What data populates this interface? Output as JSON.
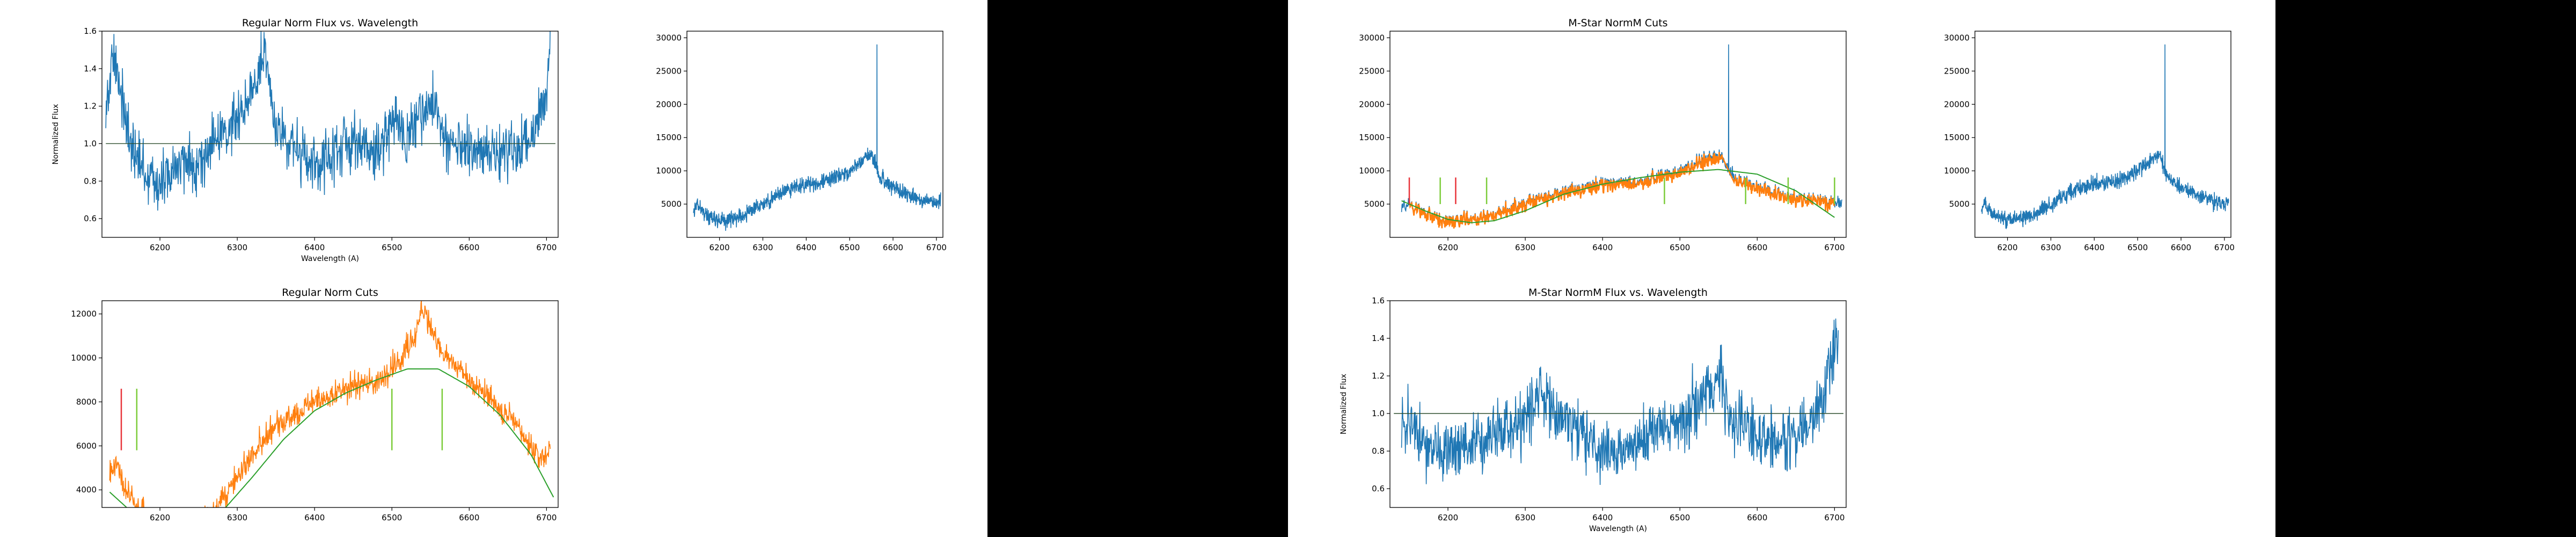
{
  "figure_1": {
    "chart_data": [
      {
        "id": "f1-flux",
        "type": "line",
        "title": "Regular Norm Flux vs. Wavelength",
        "xlabel": "Wavelength (A)",
        "ylabel": "Normalized Flux",
        "xlim": [
          6125,
          6715
        ],
        "ylim": [
          0.5,
          1.6
        ],
        "xticks": [
          6200,
          6300,
          6400,
          6500,
          6600,
          6700
        ],
        "yticks": [
          0.6,
          0.8,
          1.0,
          1.2,
          1.4,
          1.6
        ],
        "ytick_labels": [
          "0.6",
          "0.8",
          "1.0",
          "1.2",
          "1.4",
          "1.6"
        ],
        "hline": 1.0,
        "spectrum_anchors": {
          "x": [
            6130,
            6140,
            6150,
            6160,
            6180,
            6200,
            6225,
            6250,
            6280,
            6300,
            6320,
            6335,
            6350,
            6380,
            6400,
            6420,
            6450,
            6480,
            6500,
            6520,
            6540,
            6555,
            6570,
            6600,
            6630,
            6660,
            6680,
            6700,
            6705
          ],
          "y": [
            1.2,
            1.45,
            1.3,
            1.0,
            0.85,
            0.78,
            0.88,
            0.9,
            1.05,
            1.15,
            1.3,
            1.45,
            1.1,
            0.95,
            0.85,
            0.95,
            1.0,
            0.95,
            1.1,
            1.05,
            1.15,
            1.25,
            1.0,
            0.95,
            0.95,
            0.95,
            1.05,
            1.25,
            1.6
          ]
        },
        "noise": 0.12,
        "series": [
          {
            "values": "spectrum",
            "color": "#1f77b4"
          },
          {
            "values": "hline",
            "color": "#2f4f2f"
          }
        ]
      },
      {
        "id": "f1-raw",
        "type": "line",
        "title": "",
        "xlabel": "",
        "ylabel": "",
        "xlim": [
          6125,
          6715
        ],
        "ylim": [
          0,
          31000
        ],
        "xticks": [
          6200,
          6300,
          6400,
          6500,
          6600,
          6700
        ],
        "yticks": [
          5000,
          10000,
          15000,
          20000,
          25000,
          30000
        ],
        "ytick_labels": [
          "5000",
          "10000",
          "15000",
          "20000",
          "25000",
          "30000"
        ],
        "spectrum_anchors": {
          "x": [
            6140,
            6150,
            6165,
            6200,
            6230,
            6260,
            6300,
            6350,
            6400,
            6450,
            6500,
            6530,
            6550,
            6570,
            6600,
            6650,
            6700,
            6710
          ],
          "y": [
            4500,
            5000,
            3500,
            2500,
            2800,
            3500,
            5000,
            7000,
            8000,
            8500,
            10000,
            11500,
            12500,
            9000,
            7500,
            6000,
            5000,
            5500
          ]
        },
        "spike": {
          "x": 6563,
          "y": 29000
        },
        "noise": 900,
        "series": [
          {
            "values": "spectrum",
            "color": "#1f77b4"
          }
        ]
      },
      {
        "id": "f1-cuts",
        "type": "line",
        "title": "Regular Norm Cuts",
        "xlabel": "",
        "ylabel": "",
        "xlim": [
          6125,
          6715
        ],
        "ylim": [
          3200,
          12600
        ],
        "xticks": [
          6200,
          6300,
          6400,
          6500,
          6600,
          6700
        ],
        "yticks": [
          4000,
          6000,
          8000,
          10000,
          12000
        ],
        "ytick_labels": [
          "4000",
          "6000",
          "8000",
          "10000",
          "12000"
        ],
        "spectrum_anchors": {
          "x": [
            6135,
            6145,
            6155,
            6170,
            6200,
            6230,
            6260,
            6290,
            6320,
            6350,
            6380,
            6400,
            6430,
            6460,
            6490,
            6510,
            6530,
            6540,
            6555,
            6570,
            6600,
            6630,
            6660,
            6690,
            6705
          ],
          "y": [
            4800,
            5200,
            4000,
            3200,
            2400,
            2200,
            2700,
            4000,
            5800,
            7000,
            7500,
            8000,
            8400,
            8800,
            9200,
            10000,
            11000,
            12200,
            11000,
            10000,
            9000,
            8000,
            7000,
            5500,
            5800
          ]
        },
        "fit_anchors": {
          "x": [
            6135,
            6160,
            6200,
            6240,
            6280,
            6320,
            6360,
            6400,
            6440,
            6480,
            6520,
            6560,
            6600,
            6640,
            6680,
            6710
          ],
          "y": [
            3900,
            3100,
            2300,
            2100,
            3000,
            4600,
            6300,
            7600,
            8400,
            9000,
            9500,
            9500,
            8700,
            7400,
            5600,
            3600
          ]
        },
        "noise": 450,
        "markers": [
          {
            "x": 6150,
            "y0": 5800,
            "y1": 8600,
            "color": "#e8333a"
          },
          {
            "x": 6170,
            "y0": 5800,
            "y1": 8600,
            "color": "#7ccc3a"
          },
          {
            "x": 6500,
            "y0": 5800,
            "y1": 8600,
            "color": "#7ccc3a"
          },
          {
            "x": 6565,
            "y0": 5800,
            "y1": 8600,
            "color": "#7ccc3a"
          }
        ],
        "series": [
          {
            "values": "spectrum",
            "color": "#ff7f0e"
          },
          {
            "values": "fit",
            "color": "#2ca02c"
          }
        ]
      }
    ]
  },
  "figure_2": {
    "chart_data": [
      {
        "id": "f2-cuts",
        "type": "line",
        "title": "M-Star NormM Cuts",
        "xlabel": "",
        "ylabel": "",
        "xlim": [
          6125,
          6715
        ],
        "ylim": [
          0,
          31000
        ],
        "xticks": [
          6200,
          6300,
          6400,
          6500,
          6600,
          6700
        ],
        "yticks": [
          5000,
          10000,
          15000,
          20000,
          25000,
          30000
        ],
        "ytick_labels": [
          "5000",
          "10000",
          "15000",
          "20000",
          "25000",
          "30000"
        ],
        "spectrum_anchors": {
          "x": [
            6140,
            6150,
            6170,
            6200,
            6230,
            6260,
            6300,
            6350,
            6400,
            6450,
            6500,
            6530,
            6550,
            6570,
            6600,
            6650,
            6700,
            6710
          ],
          "y": [
            4500,
            5000,
            3500,
            2500,
            2800,
            3500,
            5000,
            7000,
            8000,
            8500,
            10000,
            11500,
            12500,
            9000,
            7500,
            6000,
            5000,
            5500
          ]
        },
        "spike": {
          "x": 6563,
          "y": 29000
        },
        "fit_anchors": {
          "x": [
            6140,
            6170,
            6200,
            6230,
            6260,
            6300,
            6350,
            6400,
            6450,
            6500,
            6550,
            6600,
            6650,
            6700
          ],
          "y": [
            5500,
            4000,
            2700,
            2200,
            2500,
            4000,
            6500,
            8000,
            9000,
            9800,
            10200,
            9500,
            7000,
            3000
          ]
        },
        "noise": 900,
        "markers": [
          {
            "x": 6150,
            "y0": 5000,
            "y1": 9000,
            "color": "#e8333a"
          },
          {
            "x": 6190,
            "y0": 5000,
            "y1": 9000,
            "color": "#7ccc3a"
          },
          {
            "x": 6210,
            "y0": 5000,
            "y1": 9000,
            "color": "#e8333a"
          },
          {
            "x": 6250,
            "y0": 5000,
            "y1": 9000,
            "color": "#7ccc3a"
          },
          {
            "x": 6480,
            "y0": 5000,
            "y1": 9000,
            "color": "#7ccc3a"
          },
          {
            "x": 6585,
            "y0": 5000,
            "y1": 9000,
            "color": "#7ccc3a"
          },
          {
            "x": 6640,
            "y0": 5000,
            "y1": 9000,
            "color": "#7ccc3a"
          },
          {
            "x": 6700,
            "y0": 5000,
            "y1": 9000,
            "color": "#7ccc3a"
          }
        ],
        "series": [
          {
            "values": "spectrum",
            "color": "#1f77b4"
          },
          {
            "values": "cut",
            "color": "#ff7f0e"
          },
          {
            "values": "fit",
            "color": "#2ca02c"
          }
        ]
      },
      {
        "id": "f2-raw",
        "type": "line",
        "title": "",
        "xlabel": "",
        "ylabel": "",
        "xlim": [
          6125,
          6715
        ],
        "ylim": [
          0,
          31000
        ],
        "xticks": [
          6200,
          6300,
          6400,
          6500,
          6600,
          6700
        ],
        "yticks": [
          5000,
          10000,
          15000,
          20000,
          25000,
          30000
        ],
        "ytick_labels": [
          "5000",
          "10000",
          "15000",
          "20000",
          "25000",
          "30000"
        ],
        "spectrum_anchors": {
          "x": [
            6140,
            6150,
            6165,
            6200,
            6230,
            6260,
            6300,
            6350,
            6400,
            6450,
            6500,
            6530,
            6550,
            6570,
            6600,
            6650,
            6700,
            6710
          ],
          "y": [
            4500,
            5000,
            3500,
            2500,
            2800,
            3500,
            5000,
            7000,
            8000,
            8500,
            10000,
            11500,
            12500,
            9000,
            7500,
            6000,
            5000,
            5500
          ]
        },
        "spike": {
          "x": 6563,
          "y": 29000
        },
        "noise": 900,
        "series": [
          {
            "values": "spectrum",
            "color": "#1f77b4"
          }
        ]
      },
      {
        "id": "f2-flux",
        "type": "line",
        "title": "M-Star NormM Flux vs. Wavelength",
        "xlabel": "Wavelength (A)",
        "ylabel": "Normalized Flux",
        "xlim": [
          6125,
          6715
        ],
        "ylim": [
          0.5,
          1.6
        ],
        "xticks": [
          6200,
          6300,
          6400,
          6500,
          6600,
          6700
        ],
        "yticks": [
          0.6,
          0.8,
          1.0,
          1.2,
          1.4,
          1.6
        ],
        "ytick_labels": [
          "0.6",
          "0.8",
          "1.0",
          "1.2",
          "1.4",
          "1.6"
        ],
        "hline": 1.0,
        "spectrum_anchors": {
          "x": [
            6140,
            6150,
            6170,
            6200,
            6240,
            6270,
            6300,
            6320,
            6340,
            6360,
            6400,
            6430,
            6460,
            6500,
            6530,
            6550,
            6570,
            6600,
            6640,
            6670,
            6690,
            6705
          ],
          "y": [
            0.9,
            1.0,
            0.85,
            0.8,
            0.85,
            0.9,
            0.95,
            1.15,
            0.95,
            0.95,
            0.8,
            0.8,
            0.9,
            0.95,
            1.1,
            1.2,
            0.95,
            0.9,
            0.85,
            0.95,
            1.15,
            1.45
          ]
        },
        "noise": 0.13,
        "series": [
          {
            "values": "spectrum",
            "color": "#1f77b4"
          },
          {
            "values": "hline",
            "color": "#2f4f2f"
          }
        ]
      }
    ]
  }
}
